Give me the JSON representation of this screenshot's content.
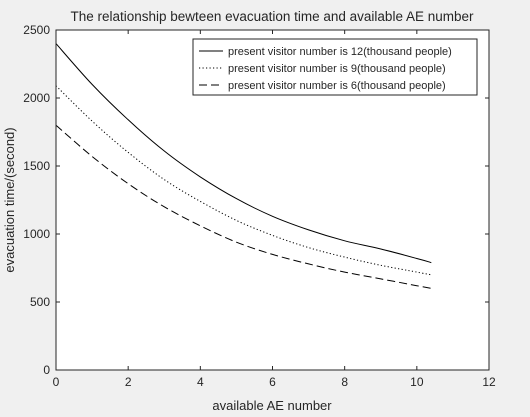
{
  "chart_data": {
    "type": "line",
    "title": "The relationship bewteen evacuation time and available AE number",
    "xlabel": "available AE number",
    "ylabel": "evacuation time/(second)",
    "xlim": [
      0,
      12
    ],
    "ylim": [
      0,
      2500
    ],
    "xticks": [
      0,
      2,
      4,
      6,
      8,
      10,
      12
    ],
    "yticks": [
      0,
      500,
      1000,
      1500,
      2000,
      2500
    ],
    "grid": false,
    "legend_position": "top-right",
    "series": [
      {
        "name": "present visitor number is 12(thousand people)",
        "line_style": "solid",
        "color": "#000000",
        "x": [
          0,
          1,
          2,
          3,
          4,
          5,
          6,
          7,
          8,
          9,
          10,
          10.4
        ],
        "y": [
          2400,
          2100,
          1840,
          1610,
          1420,
          1260,
          1130,
          1030,
          950,
          890,
          820,
          790
        ]
      },
      {
        "name": "present visitor number is 9(thousand people)",
        "line_style": "dotted",
        "color": "#000000",
        "x": [
          0,
          1,
          2,
          3,
          4,
          5,
          6,
          7,
          8,
          9,
          10,
          10.4
        ],
        "y": [
          2090,
          1830,
          1600,
          1400,
          1240,
          1100,
          990,
          900,
          830,
          770,
          720,
          700
        ]
      },
      {
        "name": "present visitor number is 6(thousand people)",
        "line_style": "dashed",
        "color": "#000000",
        "x": [
          0,
          1,
          2,
          3,
          4,
          5,
          6,
          7,
          8,
          9,
          10,
          10.4
        ],
        "y": [
          1800,
          1570,
          1370,
          1200,
          1060,
          940,
          850,
          780,
          720,
          670,
          620,
          600
        ]
      }
    ]
  }
}
